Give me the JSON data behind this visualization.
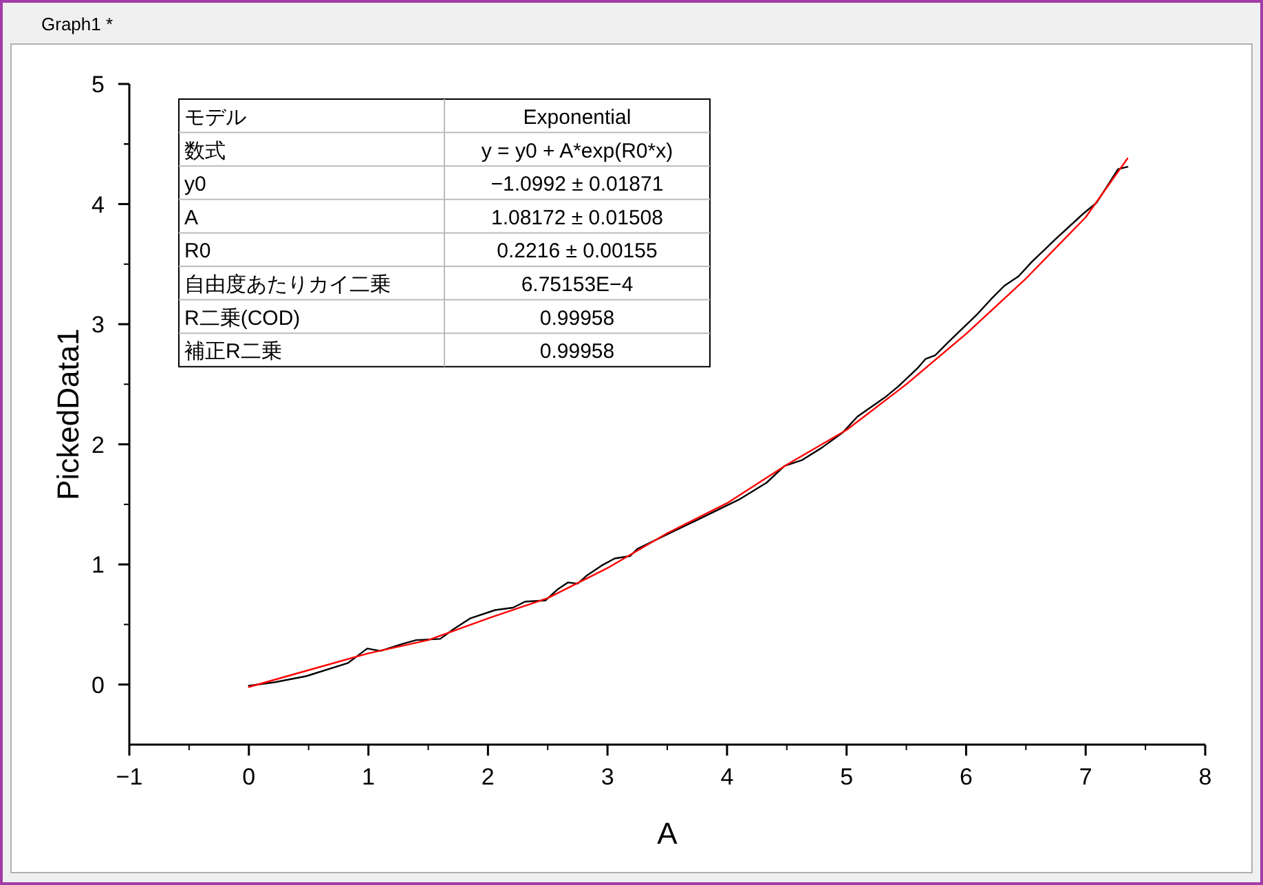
{
  "chart_data": {
    "type": "line",
    "title": "Graph1 *",
    "xlabel": "A",
    "ylabel": "PickedData1",
    "xlim": [
      -1,
      8
    ],
    "xticks": [
      -1,
      0,
      1,
      2,
      3,
      4,
      5,
      6,
      7,
      8
    ],
    "ylim": [
      -0.5,
      5
    ],
    "yticks": [
      0,
      1,
      2,
      3,
      4,
      5
    ],
    "grid": false,
    "marker": "none",
    "line_style": "solid",
    "annotations": [
      "モデル",
      "Exponential",
      "数式",
      "y = y0 + A*exp(R0*x)",
      "y0",
      "−1.0992 ± 0.01871",
      "A",
      "1.08172 ± 0.01508",
      "R0",
      "0.2216 ± 0.00155",
      "自由度あたりカイ二乗",
      "6.75153E−4",
      "R二乗(COD)",
      "0.99958",
      "補正R二乗",
      "0.99958"
    ],
    "series": [
      {
        "color": "#000000",
        "x": [
          0,
          0.22,
          0.48,
          0.83,
          0.91,
          0.99,
          1.1,
          1.29,
          1.4,
          1.6,
          1.71,
          1.85,
          2.06,
          2.21,
          2.31,
          2.48,
          2.58,
          2.67,
          2.75,
          2.83,
          2.95,
          3.06,
          3.19,
          3.25,
          3.56,
          3.75,
          4.1,
          4.33,
          4.48,
          4.63,
          4.79,
          4.97,
          5.09,
          5.32,
          5.43,
          5.59,
          5.66,
          5.74,
          5.86,
          6.09,
          6.21,
          6.32,
          6.44,
          6.55,
          6.75,
          6.98,
          7.09,
          7.2,
          7.27,
          7.35
        ],
        "values": [
          -0.01,
          0.02,
          0.07,
          0.18,
          0.24,
          0.3,
          0.28,
          0.34,
          0.37,
          0.38,
          0.46,
          0.55,
          0.62,
          0.64,
          0.69,
          0.7,
          0.79,
          0.85,
          0.84,
          0.91,
          0.99,
          1.05,
          1.07,
          1.13,
          1.28,
          1.37,
          1.54,
          1.68,
          1.82,
          1.87,
          1.97,
          2.1,
          2.23,
          2.39,
          2.48,
          2.63,
          2.71,
          2.74,
          2.86,
          3.08,
          3.21,
          3.32,
          3.4,
          3.52,
          3.71,
          3.92,
          4.01,
          4.18,
          4.29,
          4.31
        ]
      },
      {
        "color": "#ff0000",
        "x": [
          0,
          0.5,
          1,
          1.5,
          2,
          2.5,
          3,
          3.5,
          4,
          4.5,
          5,
          5.5,
          6,
          6.5,
          7,
          7.35
        ],
        "values": [
          -0.02,
          0.12,
          0.26,
          0.37,
          0.55,
          0.72,
          0.97,
          1.26,
          1.51,
          1.83,
          2.12,
          2.5,
          2.92,
          3.38,
          3.89,
          4.38
        ]
      }
    ]
  }
}
